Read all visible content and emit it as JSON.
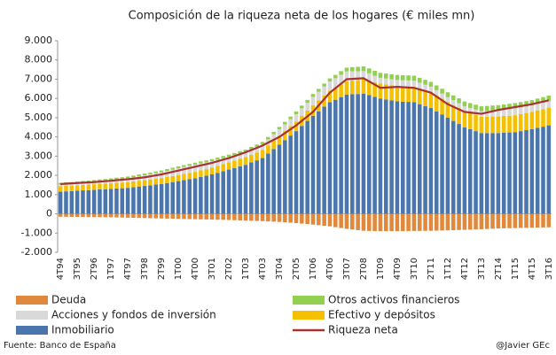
{
  "chart_data": {
    "type": "bar",
    "title": "Composición de la riqueza neta de los hogares (€ miles mn)",
    "source": "Fuente: Banco de España",
    "credit": "@Javier GEc",
    "categories": [
      "4T94",
      null,
      null,
      "3T95",
      null,
      null,
      "2T96",
      null,
      null,
      "1T97",
      null,
      null,
      "4T97",
      null,
      null,
      "3T98",
      null,
      null,
      "2T99",
      null,
      null,
      "1T00",
      null,
      null,
      "4T00",
      null,
      null,
      "3T01",
      null,
      null,
      "2T02",
      null,
      null,
      "1T03",
      null,
      null,
      "4T03",
      null,
      null,
      "3T04",
      null,
      null,
      "2T05",
      null,
      null,
      "1T06",
      null,
      null,
      "4T06",
      null,
      null,
      "3T07",
      null,
      null,
      "2T08",
      null,
      null,
      "1T09",
      null,
      null,
      "4T09",
      null,
      null,
      "3T10",
      null,
      null,
      "2T11",
      null,
      null,
      "1T12",
      null,
      null,
      "4T12",
      null,
      null,
      "3T13",
      null,
      null,
      "2T14",
      null,
      null,
      "1T15",
      null,
      null,
      "4T15",
      null,
      null,
      "3T16"
    ],
    "ylim": [
      -2000,
      9000
    ],
    "yticks": [
      {
        "value": 9000,
        "label": "9.000"
      },
      {
        "value": 8000,
        "label": "8.000"
      },
      {
        "value": 7000,
        "label": "7.000"
      },
      {
        "value": 6000,
        "label": "6.000"
      },
      {
        "value": 5000,
        "label": "5.000"
      },
      {
        "value": 4000,
        "label": "4.000"
      },
      {
        "value": 3000,
        "label": "3.000"
      },
      {
        "value": 2000,
        "label": "2.000"
      },
      {
        "value": 1000,
        "label": "1.000"
      },
      0,
      {
        "value": -1000,
        "label": "-1.000"
      },
      {
        "value": -2000,
        "label": "-2.000"
      }
    ],
    "series": [
      {
        "name": "Inmobiliario",
        "color": "#4a76ad",
        "mark": "bar",
        "values": [
          1150,
          1170,
          1180,
          1200,
          1220,
          1230,
          1250,
          1270,
          1280,
          1300,
          1320,
          1330,
          1350,
          1380,
          1420,
          1450,
          1480,
          1520,
          1550,
          1600,
          1650,
          1700,
          1750,
          1800,
          1850,
          1920,
          1980,
          2050,
          2130,
          2220,
          2300,
          2380,
          2470,
          2550,
          2670,
          2780,
          2900,
          3130,
          3370,
          3600,
          3830,
          4070,
          4300,
          4570,
          4830,
          5100,
          5330,
          5570,
          5800,
          5930,
          6070,
          6200,
          6220,
          6230,
          6250,
          6170,
          6080,
          6000,
          5950,
          5900,
          5850,
          5830,
          5820,
          5800,
          5700,
          5600,
          5500,
          5330,
          5170,
          5000,
          4830,
          4670,
          4500,
          4400,
          4300,
          4200,
          4200,
          4200,
          4200,
          4220,
          4230,
          4250,
          4300,
          4350,
          4400,
          4470,
          4530,
          4600
        ]
      },
      {
        "name": "Efectivo y depósitos",
        "color": "#f5c000",
        "mark": "bar",
        "values": [
          280,
          282,
          283,
          285,
          287,
          288,
          290,
          292,
          293,
          295,
          297,
          298,
          300,
          302,
          303,
          305,
          307,
          308,
          310,
          313,
          317,
          320,
          323,
          327,
          330,
          337,
          343,
          350,
          357,
          363,
          370,
          378,
          387,
          395,
          403,
          412,
          420,
          433,
          447,
          460,
          473,
          487,
          500,
          517,
          533,
          550,
          567,
          583,
          600,
          627,
          653,
          680,
          703,
          727,
          750,
          757,
          763,
          770,
          773,
          777,
          780,
          787,
          793,
          800,
          803,
          807,
          810,
          813,
          817,
          820,
          823,
          827,
          830,
          837,
          843,
          850,
          853,
          857,
          860,
          867,
          873,
          880,
          887,
          893,
          900,
          907,
          913,
          920
        ]
      },
      {
        "name": "Acciones y fondos de inversión",
        "color": "#d9d9d9",
        "mark": "bar",
        "values": [
          100,
          103,
          107,
          110,
          117,
          123,
          130,
          140,
          150,
          160,
          173,
          187,
          200,
          217,
          233,
          250,
          267,
          283,
          300,
          317,
          333,
          350,
          360,
          370,
          380,
          367,
          353,
          340,
          327,
          313,
          300,
          293,
          287,
          280,
          287,
          293,
          300,
          310,
          320,
          330,
          347,
          363,
          380,
          397,
          413,
          430,
          447,
          463,
          480,
          493,
          507,
          520,
          487,
          453,
          420,
          380,
          340,
          300,
          310,
          320,
          330,
          327,
          323,
          320,
          313,
          307,
          300,
          283,
          267,
          250,
          253,
          257,
          260,
          267,
          273,
          280,
          293,
          307,
          320,
          330,
          340,
          350,
          343,
          337,
          330,
          333,
          337,
          340
        ]
      },
      {
        "name": "Otros activos financieros",
        "color": "#92d050",
        "mark": "bar",
        "values": [
          80,
          81,
          81,
          82,
          83,
          84,
          85,
          86,
          87,
          88,
          89,
          89,
          90,
          91,
          92,
          93,
          94,
          94,
          95,
          96,
          97,
          98,
          99,
          99,
          100,
          102,
          103,
          105,
          107,
          108,
          110,
          112,
          113,
          115,
          117,
          118,
          120,
          123,
          127,
          130,
          133,
          137,
          140,
          143,
          147,
          150,
          153,
          157,
          160,
          173,
          187,
          200,
          217,
          233,
          250,
          253,
          257,
          260,
          260,
          260,
          260,
          260,
          260,
          260,
          257,
          253,
          250,
          250,
          250,
          250,
          250,
          250,
          250,
          253,
          257,
          260,
          263,
          267,
          270,
          273,
          277,
          280,
          280,
          280,
          280,
          283,
          287,
          290
        ]
      },
      {
        "name": "Deuda",
        "color": "#e0883c",
        "mark": "bar",
        "values": [
          -150,
          -153,
          -157,
          -160,
          -163,
          -167,
          -170,
          -173,
          -177,
          -180,
          -187,
          -193,
          -200,
          -207,
          -213,
          -220,
          -227,
          -233,
          -240,
          -247,
          -253,
          -260,
          -267,
          -273,
          -280,
          -287,
          -293,
          -300,
          -307,
          -313,
          -320,
          -330,
          -340,
          -350,
          -360,
          -370,
          -380,
          -393,
          -407,
          -420,
          -440,
          -460,
          -480,
          -507,
          -533,
          -560,
          -590,
          -620,
          -650,
          -693,
          -737,
          -780,
          -813,
          -847,
          -880,
          -887,
          -893,
          -900,
          -900,
          -900,
          -900,
          -897,
          -893,
          -890,
          -887,
          -883,
          -880,
          -873,
          -867,
          -860,
          -850,
          -840,
          -830,
          -820,
          -810,
          -800,
          -787,
          -773,
          -760,
          -753,
          -747,
          -740,
          -733,
          -727,
          -720,
          -713,
          -707,
          -700
        ]
      },
      {
        "name": "Riqueza neta",
        "color": "#a83232",
        "mark": "line",
        "values": [
          1550,
          1567,
          1583,
          1600,
          1617,
          1633,
          1650,
          1673,
          1697,
          1720,
          1747,
          1773,
          1800,
          1833,
          1867,
          1900,
          1950,
          2000,
          2050,
          2117,
          2183,
          2250,
          2317,
          2383,
          2450,
          2517,
          2583,
          2650,
          2733,
          2817,
          2900,
          3000,
          3100,
          3200,
          3317,
          3433,
          3550,
          3700,
          3850,
          4000,
          4200,
          4400,
          4600,
          4833,
          5067,
          5300,
          5633,
          5967,
          6300,
          6533,
          6767,
          7000,
          7017,
          7033,
          7050,
          6883,
          6717,
          6550,
          6567,
          6583,
          6600,
          6583,
          6567,
          6550,
          6467,
          6383,
          6300,
          6100,
          5900,
          5700,
          5567,
          5433,
          5300,
          5267,
          5233,
          5200,
          5267,
          5333,
          5400,
          5450,
          5500,
          5550,
          5600,
          5650,
          5700,
          5767,
          5833,
          5900
        ]
      }
    ]
  }
}
